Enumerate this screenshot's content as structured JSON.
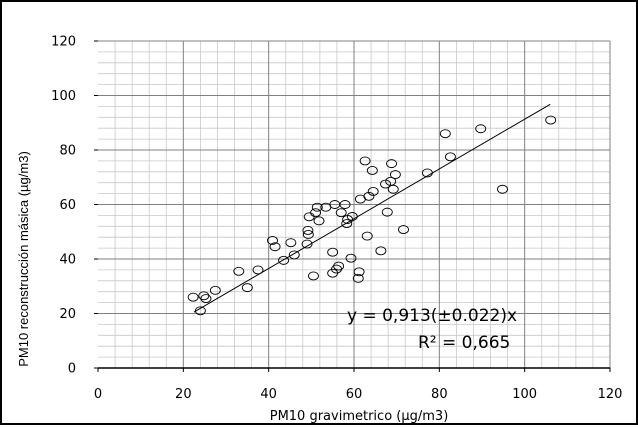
{
  "chart_data": {
    "type": "scatter",
    "xlabel": "PM10 gravimetrico (µg/m3)",
    "ylabel": "PM10 reconstrucción másica (µg/m3)",
    "xlim": [
      0,
      120
    ],
    "ylim": [
      0,
      120
    ],
    "x_ticks": [
      0,
      20,
      40,
      60,
      80,
      100,
      120
    ],
    "y_ticks": [
      0,
      20,
      40,
      60,
      80,
      100,
      120
    ],
    "x_tick_labels": [
      "0",
      "20",
      "40",
      "60",
      "80",
      "100",
      "120"
    ],
    "y_tick_labels": [
      "0",
      "20",
      "40",
      "60",
      "80",
      "100",
      "120"
    ],
    "grid": true,
    "points": [
      {
        "x": 22.3,
        "y": 26
      },
      {
        "x": 24,
        "y": 21
      },
      {
        "x": 24.8,
        "y": 26.5
      },
      {
        "x": 25.3,
        "y": 25.5
      },
      {
        "x": 27.5,
        "y": 28.5
      },
      {
        "x": 33,
        "y": 35.5
      },
      {
        "x": 35,
        "y": 29.5
      },
      {
        "x": 37.5,
        "y": 36
      },
      {
        "x": 40.9,
        "y": 46.8
      },
      {
        "x": 41.5,
        "y": 44.5
      },
      {
        "x": 43.5,
        "y": 39.5
      },
      {
        "x": 45.2,
        "y": 46
      },
      {
        "x": 46,
        "y": 41.5
      },
      {
        "x": 49,
        "y": 45.5
      },
      {
        "x": 49.2,
        "y": 50.5
      },
      {
        "x": 49.3,
        "y": 49
      },
      {
        "x": 49.5,
        "y": 55.5
      },
      {
        "x": 50.5,
        "y": 33.8
      },
      {
        "x": 51,
        "y": 57
      },
      {
        "x": 51.4,
        "y": 59
      },
      {
        "x": 51.8,
        "y": 54
      },
      {
        "x": 53.4,
        "y": 59
      },
      {
        "x": 55,
        "y": 42.5
      },
      {
        "x": 55,
        "y": 34.8
      },
      {
        "x": 55.5,
        "y": 60
      },
      {
        "x": 55.9,
        "y": 36.3
      },
      {
        "x": 56.4,
        "y": 37.4
      },
      {
        "x": 57,
        "y": 57
      },
      {
        "x": 57.9,
        "y": 60
      },
      {
        "x": 58.3,
        "y": 53
      },
      {
        "x": 58.5,
        "y": 54.5
      },
      {
        "x": 59.3,
        "y": 40.3
      },
      {
        "x": 59.6,
        "y": 55.6
      },
      {
        "x": 61,
        "y": 32.9
      },
      {
        "x": 61.2,
        "y": 35.3
      },
      {
        "x": 61.5,
        "y": 62
      },
      {
        "x": 62.6,
        "y": 76
      },
      {
        "x": 63.1,
        "y": 48.4
      },
      {
        "x": 63.5,
        "y": 63
      },
      {
        "x": 64.3,
        "y": 72.5
      },
      {
        "x": 64.5,
        "y": 64.8
      },
      {
        "x": 66.3,
        "y": 43
      },
      {
        "x": 67.4,
        "y": 67.5
      },
      {
        "x": 67.8,
        "y": 57.2
      },
      {
        "x": 68.6,
        "y": 68.5
      },
      {
        "x": 68.8,
        "y": 75
      },
      {
        "x": 69.2,
        "y": 65.6
      },
      {
        "x": 69.7,
        "y": 71
      },
      {
        "x": 71.6,
        "y": 50.8
      },
      {
        "x": 77.2,
        "y": 71.6
      },
      {
        "x": 81.4,
        "y": 86
      },
      {
        "x": 82.6,
        "y": 77.5
      },
      {
        "x": 89.7,
        "y": 87.8
      },
      {
        "x": 94.8,
        "y": 65.6
      },
      {
        "x": 106.1,
        "y": 91
      }
    ],
    "trendline": {
      "x": [
        22.5,
        106
      ],
      "slope": 0.913,
      "intercept": 0
    },
    "annotation": {
      "equation": "y = 0,913(±0.022)x",
      "r_squared": "R² = 0,665"
    }
  }
}
